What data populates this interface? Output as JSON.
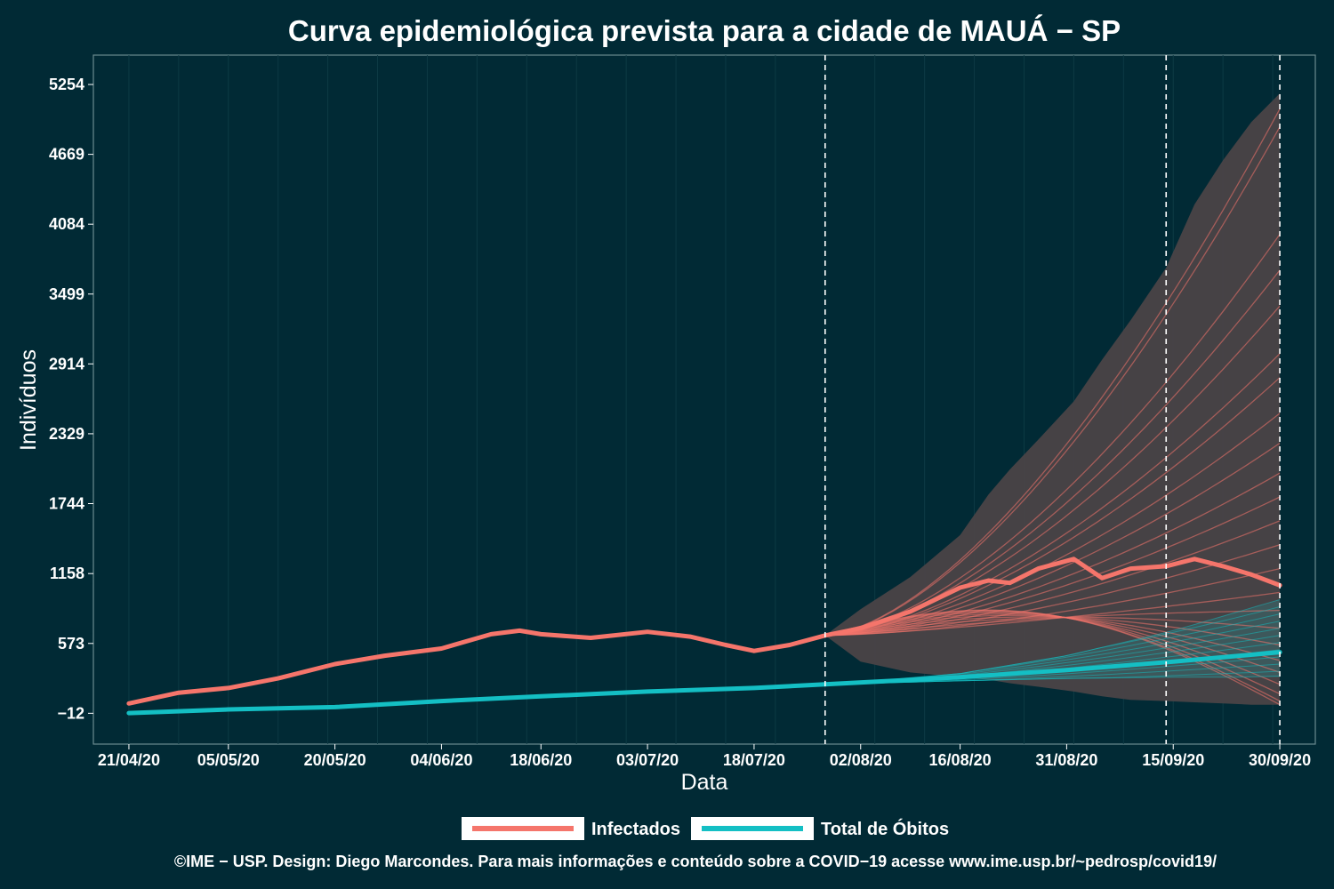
{
  "chart_data": {
    "type": "line",
    "title": "Curva epidemiológica prevista para a cidade de MAUÁ − SP",
    "xlabel": "Data",
    "ylabel": "Indivíduos",
    "x_start": "21/04/20",
    "x_range": [
      "16/04/20",
      "05/10/20"
    ],
    "x_ticks": [
      "21/04/20",
      "05/05/20",
      "20/05/20",
      "04/06/20",
      "18/06/20",
      "03/07/20",
      "18/07/20",
      "02/08/20",
      "16/08/20",
      "31/08/20",
      "15/09/20",
      "30/09/20"
    ],
    "y_ticks": [
      -12,
      573,
      1158,
      1744,
      2329,
      2914,
      3499,
      4084,
      4669,
      5254
    ],
    "ylim": [
      -270,
      5500
    ],
    "vlines": [
      "28/07/20",
      "14/09/20",
      "30/09/20"
    ],
    "grid": true,
    "legend_position": "bottom",
    "colors": {
      "background": "#012a35",
      "panel_border": "#6b8a8f",
      "grid": "#0d3a44",
      "infected": "#f5756b",
      "deaths": "#14bfc4",
      "band": "#4a4347"
    },
    "series": [
      {
        "name": "Infectados",
        "color": "#f5756b",
        "observed": {
          "dates": [
            "21/04/20",
            "28/04/20",
            "05/05/20",
            "12/05/20",
            "20/05/20",
            "27/05/20",
            "04/06/20",
            "11/06/20",
            "15/06/20",
            "18/06/20",
            "25/06/20",
            "03/07/20",
            "09/07/20",
            "14/07/20",
            "18/07/20",
            "23/07/20",
            "28/07/20"
          ],
          "values": [
            70,
            160,
            200,
            280,
            400,
            470,
            530,
            650,
            680,
            650,
            620,
            670,
            630,
            560,
            510,
            560,
            640
          ]
        },
        "forecast": {
          "dates": [
            "28/07/20",
            "02/08/20",
            "09/08/20",
            "16/08/20",
            "20/08/20",
            "23/08/20",
            "27/08/20",
            "01/09/20",
            "05/09/20",
            "09/09/20",
            "14/09/20",
            "18/09/20",
            "22/09/20",
            "26/09/20",
            "30/09/20"
          ],
          "median": [
            640,
            700,
            840,
            1040,
            1100,
            1080,
            1200,
            1280,
            1120,
            1200,
            1220,
            1280,
            1220,
            1150,
            1060
          ],
          "lower": [
            640,
            420,
            330,
            290,
            270,
            240,
            210,
            170,
            130,
            100,
            90,
            80,
            70,
            60,
            60
          ],
          "upper": [
            640,
            860,
            1130,
            1480,
            1820,
            2030,
            2280,
            2600,
            2950,
            3280,
            3720,
            4250,
            4620,
            4940,
            5180
          ],
          "paths_end": [
            5050,
            4900,
            4000,
            3700,
            3400,
            3000,
            2800,
            2500,
            2250,
            2000,
            1800,
            1600,
            1400,
            1200,
            1000,
            850,
            700,
            560,
            430,
            330,
            230,
            150,
            90,
            60
          ]
        }
      },
      {
        "name": "Total de Óbitos",
        "color": "#14bfc4",
        "observed": {
          "dates": [
            "21/04/20",
            "05/05/20",
            "20/05/20",
            "04/06/20",
            "18/06/20",
            "03/07/20",
            "18/07/20",
            "28/07/20"
          ],
          "values": [
            -10,
            20,
            40,
            90,
            130,
            170,
            200,
            230
          ]
        },
        "forecast": {
          "dates": [
            "28/07/20",
            "16/08/20",
            "31/08/20",
            "15/09/20",
            "30/09/20"
          ],
          "median": [
            230,
            290,
            350,
            420,
            500
          ],
          "lower": [
            230,
            260,
            280,
            290,
            290
          ],
          "upper": [
            230,
            320,
            470,
            680,
            940
          ],
          "paths_end": [
            940,
            880,
            820,
            760,
            700,
            640,
            580,
            520,
            460,
            400,
            340,
            300
          ]
        }
      }
    ],
    "legend": [
      "Infectados",
      "Total de Óbitos"
    ],
    "caption": "©IME − USP. Design: Diego Marcondes. Para mais informações e conteúdo sobre a COVID−19 acesse www.ime.usp.br/~pedrosp/covid19/"
  }
}
